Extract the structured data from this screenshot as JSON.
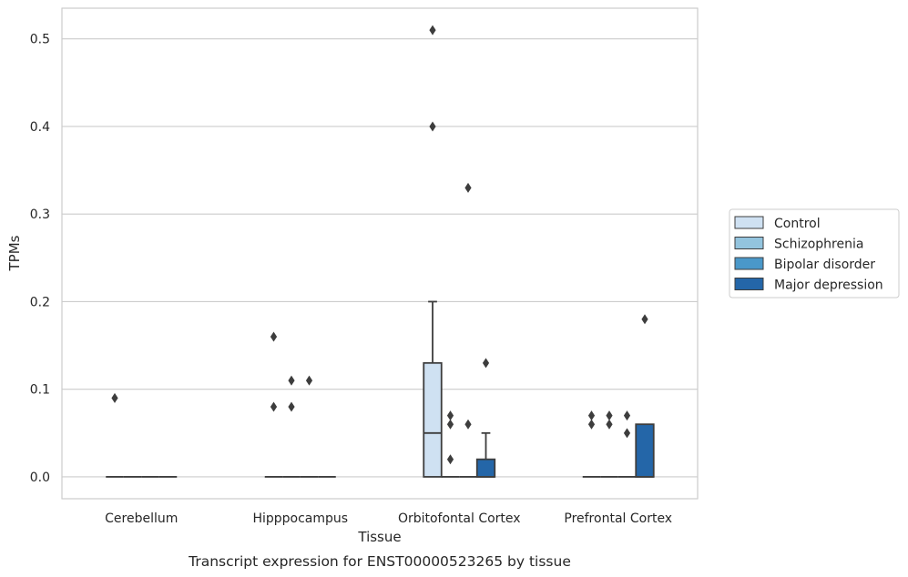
{
  "chart_data": {
    "type": "boxplot",
    "caption": "Transcript expression for ENST00000523265 by tissue",
    "xlabel": "Tissue",
    "ylabel": "TPMs",
    "ylim": [
      -0.025,
      0.535
    ],
    "yticks": [
      0.0,
      0.1,
      0.2,
      0.3,
      0.4,
      0.5
    ],
    "ytick_labels": [
      "0.0",
      "0.1",
      "0.2",
      "0.3",
      "0.4",
      "0.5"
    ],
    "grid": "horizontal",
    "legend_position": "outside-right",
    "categories": [
      "Cerebellum",
      "Hipppocampus",
      "Orbitofontal Cortex",
      "Prefrontal Cortex"
    ],
    "series": [
      {
        "name": "Control",
        "color": "#cfe1f2",
        "boxes": [
          {
            "q1": 0,
            "median": 0,
            "q3": 0,
            "whislo": 0,
            "whishi": 0,
            "fliers": [
              0.09
            ]
          },
          {
            "q1": 0,
            "median": 0,
            "q3": 0,
            "whislo": 0,
            "whishi": 0,
            "fliers": [
              0.16,
              0.08
            ]
          },
          {
            "q1": 0,
            "median": 0.05,
            "q3": 0.13,
            "whislo": 0,
            "whishi": 0.2,
            "fliers": [
              0.51,
              0.4
            ]
          },
          {
            "q1": 0,
            "median": 0,
            "q3": 0,
            "whislo": 0,
            "whishi": 0,
            "fliers": [
              0.07,
              0.06
            ]
          }
        ]
      },
      {
        "name": "Schizophrenia",
        "color": "#93c4de",
        "boxes": [
          {
            "q1": 0,
            "median": 0,
            "q3": 0,
            "whislo": 0,
            "whishi": 0,
            "fliers": []
          },
          {
            "q1": 0,
            "median": 0,
            "q3": 0,
            "whislo": 0,
            "whishi": 0,
            "fliers": [
              0.11,
              0.08
            ]
          },
          {
            "q1": 0,
            "median": 0,
            "q3": 0,
            "whislo": 0,
            "whishi": 0,
            "fliers": [
              0.07,
              0.06,
              0.02
            ]
          },
          {
            "q1": 0,
            "median": 0,
            "q3": 0,
            "whislo": 0,
            "whishi": 0,
            "fliers": [
              0.07,
              0.06
            ]
          }
        ]
      },
      {
        "name": "Bipolar disorder",
        "color": "#4a98c9",
        "boxes": [
          {
            "q1": 0,
            "median": 0,
            "q3": 0,
            "whislo": 0,
            "whishi": 0,
            "fliers": []
          },
          {
            "q1": 0,
            "median": 0,
            "q3": 0,
            "whislo": 0,
            "whishi": 0,
            "fliers": [
              0.11
            ]
          },
          {
            "q1": 0,
            "median": 0,
            "q3": 0,
            "whislo": 0,
            "whishi": 0,
            "fliers": [
              0.33,
              0.06
            ]
          },
          {
            "q1": 0,
            "median": 0,
            "q3": 0,
            "whislo": 0,
            "whishi": 0,
            "fliers": [
              0.07,
              0.05
            ]
          }
        ]
      },
      {
        "name": "Major depression",
        "color": "#2466a8",
        "boxes": [
          {
            "q1": 0,
            "median": 0,
            "q3": 0,
            "whislo": 0,
            "whishi": 0,
            "fliers": []
          },
          {
            "q1": 0,
            "median": 0,
            "q3": 0,
            "whislo": 0,
            "whishi": 0,
            "fliers": []
          },
          {
            "q1": 0,
            "median": 0,
            "q3": 0.02,
            "whislo": 0,
            "whishi": 0.05,
            "fliers": [
              0.13
            ]
          },
          {
            "q1": 0,
            "median": 0,
            "q3": 0.06,
            "whislo": 0,
            "whishi": 0.06,
            "fliers": [
              0.18
            ]
          }
        ]
      }
    ]
  }
}
